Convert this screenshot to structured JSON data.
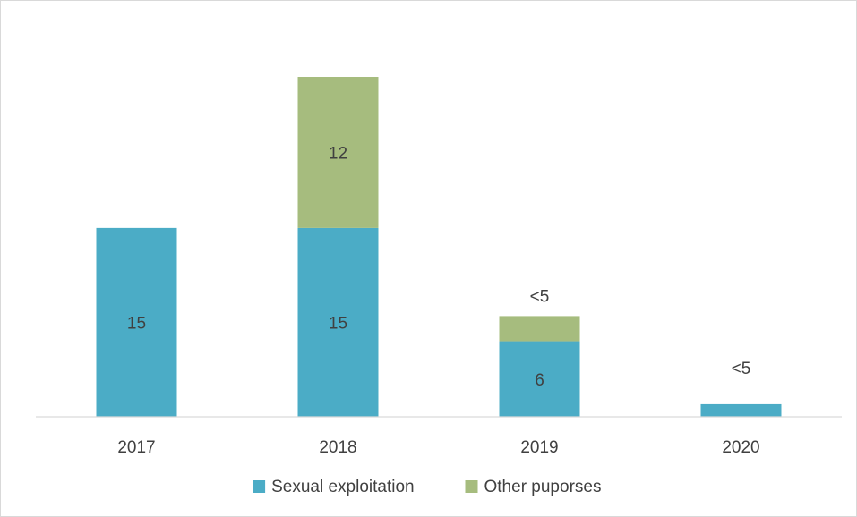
{
  "chart_data": {
    "type": "bar",
    "stacked": true,
    "title": "",
    "xlabel": "",
    "ylabel": "",
    "categories": [
      "2017",
      "2018",
      "2019",
      "2020"
    ],
    "series": [
      {
        "name": "Sexual exploitation",
        "color": "#4BACC6",
        "values": [
          15,
          15,
          6,
          1
        ],
        "labels": [
          "15",
          "15",
          "6",
          "<5"
        ]
      },
      {
        "name": "Other puporses",
        "color": "#A6BC7E",
        "values": [
          0,
          12,
          2,
          0
        ],
        "labels": [
          "",
          "12",
          "<5",
          ""
        ]
      }
    ],
    "ylim": [
      0,
      27
    ],
    "y_axis_visible": false,
    "grid": false,
    "legend": "bottom"
  }
}
